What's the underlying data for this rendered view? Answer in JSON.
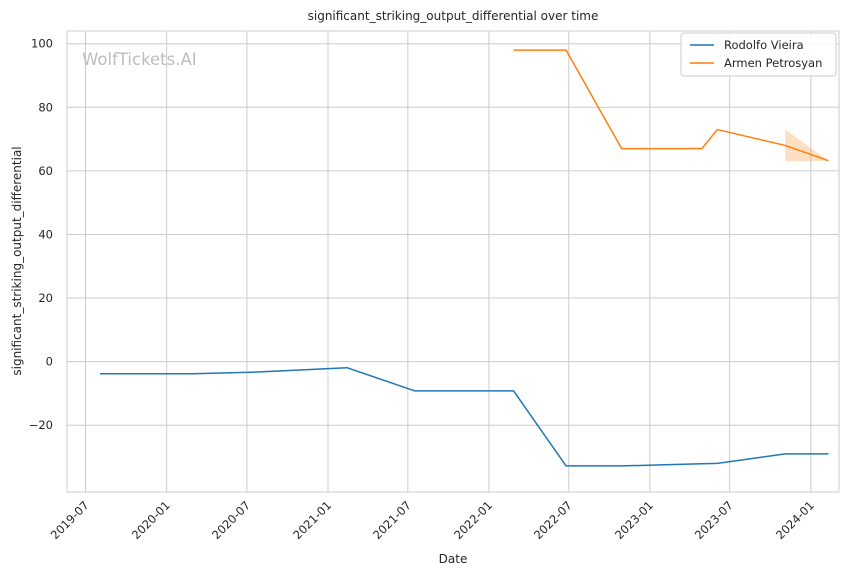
{
  "chart_data": {
    "type": "line",
    "title": "significant_striking_output_differential over time",
    "xlabel": "Date",
    "ylabel": "significant_striking_output_differential",
    "watermark": "WolfTickets.AI",
    "x_axis_type": "date",
    "xlim": [
      "2019-05-20",
      "2024-03-05"
    ],
    "ylim": [
      -41,
      104
    ],
    "x_ticks": [
      "2019-07",
      "2020-01",
      "2020-07",
      "2021-01",
      "2021-07",
      "2022-01",
      "2022-07",
      "2023-01",
      "2023-07",
      "2024-01"
    ],
    "y_ticks": [
      100,
      80,
      60,
      40,
      20,
      0,
      -20
    ],
    "y_tick_labels": [
      "100",
      "80",
      "60",
      "40",
      "20",
      "0",
      "−20"
    ],
    "grid": true,
    "legend_position": "top-right",
    "series": [
      {
        "name": "Rodolfo Vieira",
        "color": "#1f77b4",
        "x": [
          "2019-08-03",
          "2020-02-29",
          "2020-07-19",
          "2021-02-13",
          "2021-07-17",
          "2022-02-26",
          "2022-06-25",
          "2022-10-29",
          "2023-02-15",
          "2023-04-29",
          "2023-06-03",
          "2023-11-04",
          "2024-02-10"
        ],
        "y": [
          -3.8,
          -3.8,
          -3.3,
          -1.9,
          -9.2,
          -9.2,
          -32.8,
          -32.8,
          -32.4,
          -32.1,
          -32.0,
          -29.0,
          -29.0
        ]
      },
      {
        "name": "Armen Petrosyan",
        "color": "#ff7f0e",
        "x": [
          "2022-02-26",
          "2022-06-25",
          "2022-10-29",
          "2023-04-29",
          "2023-06-03",
          "2023-11-04",
          "2024-02-10"
        ],
        "y": [
          98,
          98,
          67,
          67,
          73,
          68,
          63.2
        ],
        "band": {
          "x": [
            "2023-11-04",
            "2024-02-10"
          ],
          "lower": [
            63,
            63.2
          ],
          "upper": [
            73,
            63.2
          ]
        }
      }
    ]
  }
}
